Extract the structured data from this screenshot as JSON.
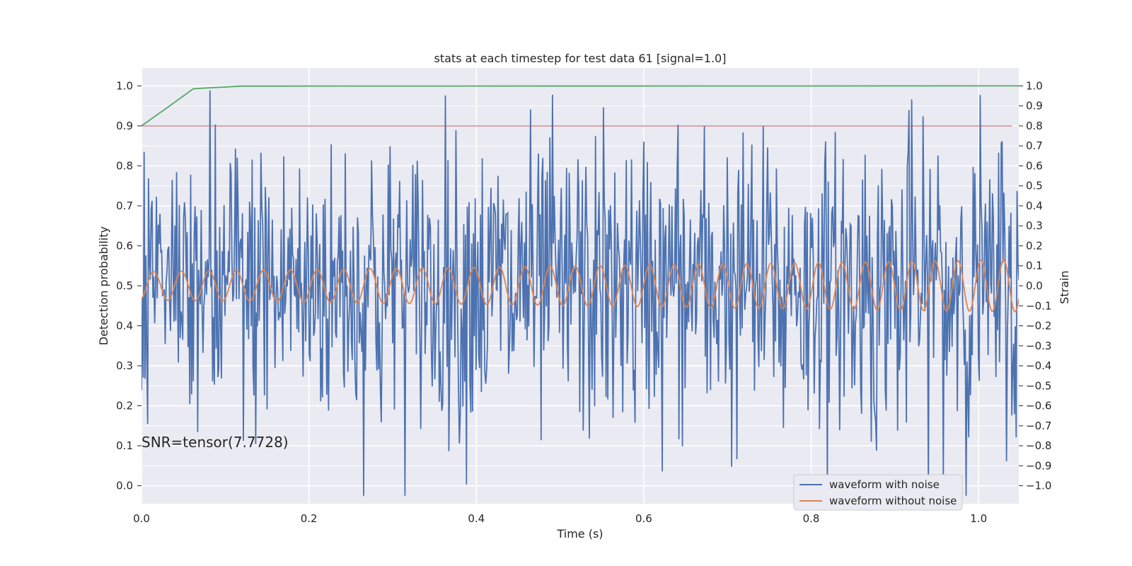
{
  "chart_data": {
    "type": "line",
    "title": "stats at each timestep for test data 61 [signal=1.0]",
    "xlabel": "Time (s)",
    "ylabel_left": "Detection probability",
    "ylabel_right": "Strain",
    "xlim": [
      0.0,
      1.048
    ],
    "ylim_left": [
      -0.045,
      1.045
    ],
    "ylim_right": [
      -1.09,
      1.09
    ],
    "x_ticks": [
      "0.0",
      "0.2",
      "0.4",
      "0.6",
      "0.8",
      "1.0"
    ],
    "x_tick_values": [
      0.0,
      0.2,
      0.4,
      0.6,
      0.8,
      1.0
    ],
    "y_left_ticks": [
      "0.0",
      "0.1",
      "0.2",
      "0.3",
      "0.4",
      "0.5",
      "0.6",
      "0.7",
      "0.8",
      "0.9",
      "1.0"
    ],
    "y_left_tick_values": [
      0.0,
      0.1,
      0.2,
      0.3,
      0.4,
      0.5,
      0.6,
      0.7,
      0.8,
      0.9,
      1.0
    ],
    "y_right_ticks": [
      "−1.0",
      "−0.9",
      "−0.8",
      "−0.7",
      "−0.6",
      "−0.5",
      "−0.4",
      "−0.3",
      "−0.2",
      "−0.1",
      "0.0",
      "0.1",
      "0.2",
      "0.3",
      "0.4",
      "0.5",
      "0.6",
      "0.7",
      "0.8",
      "0.9",
      "1.0"
    ],
    "y_right_tick_values": [
      -1.0,
      -0.9,
      -0.8,
      -0.7,
      -0.6,
      -0.5,
      -0.4,
      -0.3,
      -0.2,
      -0.1,
      0.0,
      0.1,
      0.2,
      0.3,
      0.4,
      0.5,
      0.6,
      0.7,
      0.8,
      0.9,
      1.0
    ],
    "grid": true,
    "legend_position": "lower-right",
    "annotation": "SNR=tensor(7.7728)",
    "series": [
      {
        "name": "waveform with noise",
        "axis": "right",
        "color": "#4c72b0",
        "noise_amplitude": 0.37,
        "n_points": 1000
      },
      {
        "name": "waveform without noise",
        "axis": "right",
        "color": "#dd8452",
        "amplitude_start": 0.07,
        "amplitude_end": 0.13,
        "freq_start_hz": 30,
        "freq_end_hz": 37,
        "offset": 0.0
      },
      {
        "axis": "left",
        "color": "#55a868",
        "x": [
          0.0,
          0.031,
          0.062,
          0.12,
          1.048
        ],
        "y": [
          0.9,
          0.946,
          0.993,
          0.9995,
          1.0
        ]
      },
      {
        "axis": "left",
        "color": "#c44e52",
        "x": [
          0.0,
          1.04
        ],
        "y": [
          0.9,
          0.9
        ]
      }
    ],
    "colors": {
      "plot_background": "#eaeaf2",
      "grid": "#ffffff",
      "text": "#262626"
    }
  }
}
